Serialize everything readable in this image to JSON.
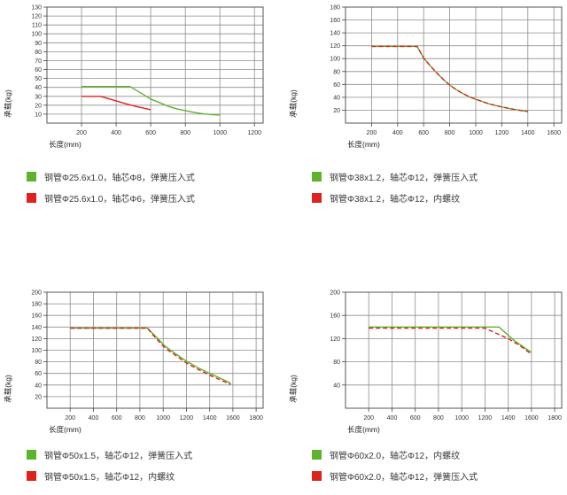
{
  "page": {
    "background": "#ffffff"
  },
  "colors": {
    "green": "#5fb22c",
    "red": "#dc231e",
    "grid": "#8d8d8d",
    "frame": "#555555"
  },
  "chart_data": [
    {
      "type": "line",
      "position": "top-left",
      "xlabel": "长度(mm)",
      "ylabel": "承载(kg)",
      "xlim": [
        0,
        1250
      ],
      "ylim": [
        0,
        130
      ],
      "x_ticks": [
        200,
        400,
        600,
        800,
        1000,
        1200
      ],
      "y_ticks": [
        10,
        20,
        30,
        40,
        50,
        60,
        70,
        80,
        90,
        100,
        110,
        120,
        130
      ],
      "grid": true,
      "legend_position": "below",
      "series": [
        {
          "name": "钢管Φ25.6x1.0，轴芯Φ8，弹簧压入式",
          "color": "#5fb22c",
          "dashed": false,
          "points": [
            [
              200,
              41
            ],
            [
              480,
              41
            ],
            [
              540,
              34
            ],
            [
              600,
              27
            ],
            [
              650,
              23
            ],
            [
              700,
              19
            ],
            [
              750,
              16
            ],
            [
              800,
              14
            ],
            [
              850,
              12
            ],
            [
              900,
              10.5
            ],
            [
              950,
              9.5
            ],
            [
              1000,
              9
            ]
          ]
        },
        {
          "name": "钢管Φ25.6x1.0，轴芯Φ6，弹簧压入式",
          "color": "#dc231e",
          "dashed": false,
          "points": [
            [
              200,
              30
            ],
            [
              310,
              30
            ],
            [
              380,
              26
            ],
            [
              450,
              22
            ],
            [
              520,
              18.5
            ],
            [
              600,
              15
            ]
          ]
        }
      ]
    },
    {
      "type": "line",
      "position": "top-right",
      "xlabel": "长度(mm)",
      "ylabel": "承载(kg)",
      "xlim": [
        0,
        1660
      ],
      "ylim": [
        0,
        180
      ],
      "x_ticks": [
        200,
        400,
        600,
        800,
        1000,
        1200,
        1400,
        1600
      ],
      "y_ticks": [
        20,
        40,
        60,
        80,
        100,
        120,
        140,
        160,
        180
      ],
      "grid": true,
      "legend_position": "below",
      "series": [
        {
          "name": "钢管Φ38x1.2，轴芯Φ12，弹簧压入式",
          "color": "#5fb22c",
          "dashed": false,
          "points": [
            [
              200,
              119
            ],
            [
              550,
              119
            ],
            [
              600,
              101
            ],
            [
              650,
              89
            ],
            [
              700,
              78
            ],
            [
              750,
              68
            ],
            [
              800,
              59
            ],
            [
              850,
              52
            ],
            [
              900,
              46
            ],
            [
              950,
              41
            ],
            [
              1000,
              37
            ],
            [
              1100,
              30
            ],
            [
              1200,
              25
            ],
            [
              1300,
              21
            ],
            [
              1400,
              18
            ]
          ]
        },
        {
          "name": "钢管Φ38x1.2，轴芯Φ12，内螺纹",
          "color": "#dc231e",
          "dashed": true,
          "points": [
            [
              200,
              119
            ],
            [
              550,
              119
            ],
            [
              600,
              101
            ],
            [
              650,
              89
            ],
            [
              700,
              78
            ],
            [
              750,
              68
            ],
            [
              800,
              59
            ],
            [
              850,
              52
            ],
            [
              900,
              46
            ],
            [
              950,
              41
            ],
            [
              1000,
              37
            ],
            [
              1100,
              30
            ],
            [
              1200,
              25
            ],
            [
              1300,
              21
            ],
            [
              1400,
              18
            ]
          ]
        }
      ]
    },
    {
      "type": "line",
      "position": "bottom-left",
      "xlabel": "长度(mm)",
      "ylabel": "承载(kg)",
      "xlim": [
        0,
        1860
      ],
      "ylim": [
        0,
        200
      ],
      "x_ticks": [
        200,
        400,
        600,
        800,
        1000,
        1200,
        1400,
        1600,
        1800
      ],
      "y_ticks": [
        20,
        40,
        60,
        80,
        100,
        120,
        140,
        160,
        180,
        200
      ],
      "grid": true,
      "legend_position": "below",
      "series": [
        {
          "name": "钢管Φ50x1.5，轴芯Φ12，弹簧压入式",
          "color": "#5fb22c",
          "dashed": false,
          "points": [
            [
              200,
              138
            ],
            [
              865,
              138
            ],
            [
              900,
              131
            ],
            [
              950,
              121
            ],
            [
              1000,
              110
            ],
            [
              1050,
              102
            ],
            [
              1100,
              95
            ],
            [
              1200,
              81
            ],
            [
              1300,
              70
            ],
            [
              1400,
              60
            ],
            [
              1500,
              51
            ],
            [
              1580,
              43
            ]
          ]
        },
        {
          "name": "钢管Φ50x1.5，轴芯Φ12，内螺纹",
          "color": "#dc231e",
          "dashed": true,
          "points": [
            [
              200,
              138
            ],
            [
              865,
              138
            ],
            [
              900,
              129
            ],
            [
              950,
              118
            ],
            [
              1000,
              107
            ],
            [
              1050,
              99
            ],
            [
              1100,
              92
            ],
            [
              1200,
              78
            ],
            [
              1300,
              67
            ],
            [
              1400,
              57
            ],
            [
              1500,
              48
            ],
            [
              1580,
              41
            ]
          ]
        }
      ]
    },
    {
      "type": "line",
      "position": "bottom-right",
      "xlabel": "长度(mm)",
      "ylabel": "承载(kg)",
      "xlim": [
        0,
        1860
      ],
      "ylim": [
        0,
        200
      ],
      "x_ticks": [
        200,
        400,
        600,
        800,
        1000,
        1200,
        1400,
        1600,
        1800
      ],
      "y_ticks": [
        40,
        80,
        120,
        160,
        200
      ],
      "grid": true,
      "legend_position": "below",
      "series": [
        {
          "name": "钢管Φ60x2.0，轴芯Φ12，内螺纹",
          "color": "#5fb22c",
          "dashed": false,
          "points": [
            [
              200,
              140
            ],
            [
              1320,
              140
            ],
            [
              1450,
              117
            ],
            [
              1600,
              96
            ]
          ]
        },
        {
          "name": "钢管Φ60x2.0，轴芯Φ12，弹簧压入式",
          "color": "#dc231e",
          "dashed": true,
          "points": [
            [
              200,
              138
            ],
            [
              1200,
              138
            ],
            [
              1320,
              127
            ],
            [
              1400,
              120
            ],
            [
              1500,
              108
            ],
            [
              1600,
              93
            ]
          ]
        }
      ]
    }
  ]
}
